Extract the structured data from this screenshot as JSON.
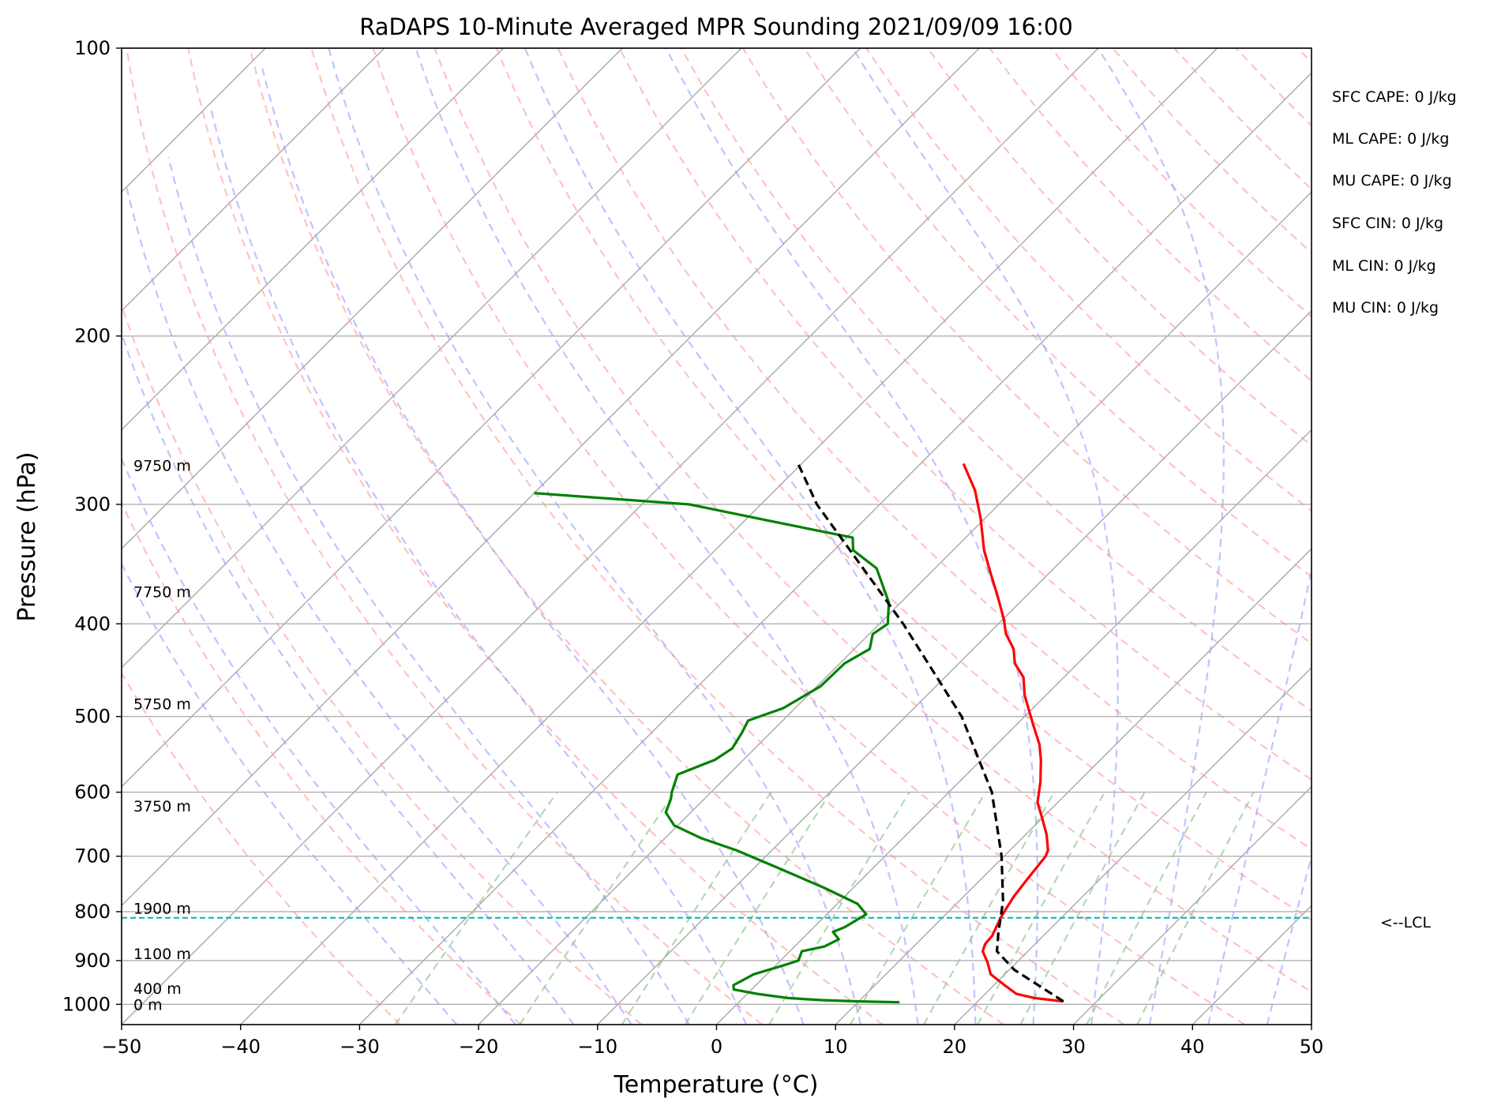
{
  "chart_data": {
    "type": "line",
    "title": "RaDAPS 10-Minute Averaged MPR Sounding 2021/09/09 16:00",
    "xlabel": "Temperature (°C)",
    "ylabel": "Pressure (hPa)",
    "xlim": [
      -50,
      50
    ],
    "ylim": [
      1050,
      100
    ],
    "y_scale": "log",
    "grid": true,
    "x_ticks": [
      -50,
      -40,
      -30,
      -20,
      -10,
      0,
      10,
      20,
      30,
      40,
      50
    ],
    "y_ticks": [
      100,
      200,
      300,
      400,
      500,
      600,
      700,
      800,
      900,
      1000
    ],
    "series": [
      {
        "color": "#ff0000",
        "points": [
          {
            "p": 993,
            "t": 27.2
          },
          {
            "p": 985,
            "t": 24.5
          },
          {
            "p": 975,
            "t": 22.6
          },
          {
            "p": 955,
            "t": 20.9
          },
          {
            "p": 930,
            "t": 18.8
          },
          {
            "p": 905,
            "t": 17.6
          },
          {
            "p": 880,
            "t": 16.2
          },
          {
            "p": 865,
            "t": 15.8
          },
          {
            "p": 848,
            "t": 15.7
          },
          {
            "p": 830,
            "t": 15.3
          },
          {
            "p": 812,
            "t": 14.9
          },
          {
            "p": 795,
            "t": 14.6
          },
          {
            "p": 770,
            "t": 14.2
          },
          {
            "p": 740,
            "t": 13.9
          },
          {
            "p": 700,
            "t": 13.5
          },
          {
            "p": 690,
            "t": 13.2
          },
          {
            "p": 665,
            "t": 11.8
          },
          {
            "p": 640,
            "t": 10.1
          },
          {
            "p": 615,
            "t": 8.3
          },
          {
            "p": 585,
            "t": 6.8
          },
          {
            "p": 555,
            "t": 5.0
          },
          {
            "p": 535,
            "t": 3.6
          },
          {
            "p": 510,
            "t": 1.4
          },
          {
            "p": 490,
            "t": -0.4
          },
          {
            "p": 475,
            "t": -1.8
          },
          {
            "p": 455,
            "t": -3.4
          },
          {
            "p": 440,
            "t": -5.3
          },
          {
            "p": 425,
            "t": -6.6
          },
          {
            "p": 410,
            "t": -8.5
          },
          {
            "p": 395,
            "t": -10.0
          },
          {
            "p": 375,
            "t": -12.3
          },
          {
            "p": 355,
            "t": -14.8
          },
          {
            "p": 335,
            "t": -17.4
          },
          {
            "p": 310,
            "t": -20.4
          },
          {
            "p": 290,
            "t": -23.2
          },
          {
            "p": 272,
            "t": -26.4
          }
        ]
      },
      {
        "color": "#008000",
        "points": [
          {
            "p": 995,
            "t": 13.5
          },
          {
            "p": 993,
            "t": 10.0
          },
          {
            "p": 990,
            "t": 6.8
          },
          {
            "p": 985,
            "t": 3.8
          },
          {
            "p": 975,
            "t": 0.8
          },
          {
            "p": 965,
            "t": -1.5
          },
          {
            "p": 955,
            "t": -1.9
          },
          {
            "p": 930,
            "t": -1.1
          },
          {
            "p": 910,
            "t": 0.7
          },
          {
            "p": 900,
            "t": 1.5
          },
          {
            "p": 880,
            "t": 1.0
          },
          {
            "p": 870,
            "t": 2.5
          },
          {
            "p": 855,
            "t": 3.1
          },
          {
            "p": 840,
            "t": 2.0
          },
          {
            "p": 830,
            "t": 2.6
          },
          {
            "p": 805,
            "t": 3.3
          },
          {
            "p": 785,
            "t": 1.7
          },
          {
            "p": 755,
            "t": -2.5
          },
          {
            "p": 720,
            "t": -8.0
          },
          {
            "p": 690,
            "t": -13.0
          },
          {
            "p": 670,
            "t": -17.0
          },
          {
            "p": 650,
            "t": -20.3
          },
          {
            "p": 630,
            "t": -22.1
          },
          {
            "p": 610,
            "t": -22.8
          },
          {
            "p": 600,
            "t": -23.3
          },
          {
            "p": 575,
            "t": -24.3
          },
          {
            "p": 555,
            "t": -22.4
          },
          {
            "p": 540,
            "t": -21.9
          },
          {
            "p": 520,
            "t": -22.4
          },
          {
            "p": 505,
            "t": -22.9
          },
          {
            "p": 490,
            "t": -21.0
          },
          {
            "p": 465,
            "t": -19.7
          },
          {
            "p": 440,
            "t": -19.6
          },
          {
            "p": 425,
            "t": -18.7
          },
          {
            "p": 410,
            "t": -19.7
          },
          {
            "p": 400,
            "t": -19.3
          },
          {
            "p": 380,
            "t": -21.0
          },
          {
            "p": 350,
            "t": -24.9
          },
          {
            "p": 335,
            "t": -28.4
          },
          {
            "p": 325,
            "t": -29.5
          },
          {
            "p": 312,
            "t": -38.0
          },
          {
            "p": 300,
            "t": -46.0
          },
          {
            "p": 292,
            "t": -60.0
          }
        ]
      },
      {
        "color": "#000000",
        "dash": true,
        "points": [
          {
            "p": 993,
            "t": 27.2
          },
          {
            "p": 960,
            "t": 24.2
          },
          {
            "p": 920,
            "t": 20.4
          },
          {
            "p": 880,
            "t": 17.4
          },
          {
            "p": 840,
            "t": 15.9
          },
          {
            "p": 812,
            "t": 14.9
          },
          {
            "p": 780,
            "t": 13.7
          },
          {
            "p": 700,
            "t": 9.8
          },
          {
            "p": 600,
            "t": 3.6
          },
          {
            "p": 500,
            "t": -5.3
          },
          {
            "p": 400,
            "t": -18.0
          },
          {
            "p": 300,
            "t": -35.3
          },
          {
            "p": 272,
            "t": -40.3
          }
        ]
      }
    ],
    "lcl": {
      "p": 812,
      "label": "<--LCL"
    },
    "height_labels": [
      {
        "text": "9750 m",
        "p": 273
      },
      {
        "text": "7750 m",
        "p": 370
      },
      {
        "text": "5750 m",
        "p": 485
      },
      {
        "text": "3750 m",
        "p": 620
      },
      {
        "text": "1900 m",
        "p": 793
      },
      {
        "text": "1100 m",
        "p": 885
      },
      {
        "text": "400 m",
        "p": 962
      },
      {
        "text": "0 m",
        "p": 1000
      }
    ],
    "annotations": [
      "SFC CAPE: 0 J/kg",
      "ML CAPE: 0 J/kg",
      "MU CAPE: 0 J/kg",
      "SFC CIN: 0 J/kg",
      "ML CIN: 0 J/kg",
      "MU CIN: 0 J/kg"
    ],
    "background_colors": {
      "isotherm": "#a9a9a9",
      "dry_adiabat": "#ff9999",
      "moist_adiabat": "#9999ff",
      "mixing_ratio": "#80c080",
      "lcl_line": "#00b4b4"
    }
  }
}
